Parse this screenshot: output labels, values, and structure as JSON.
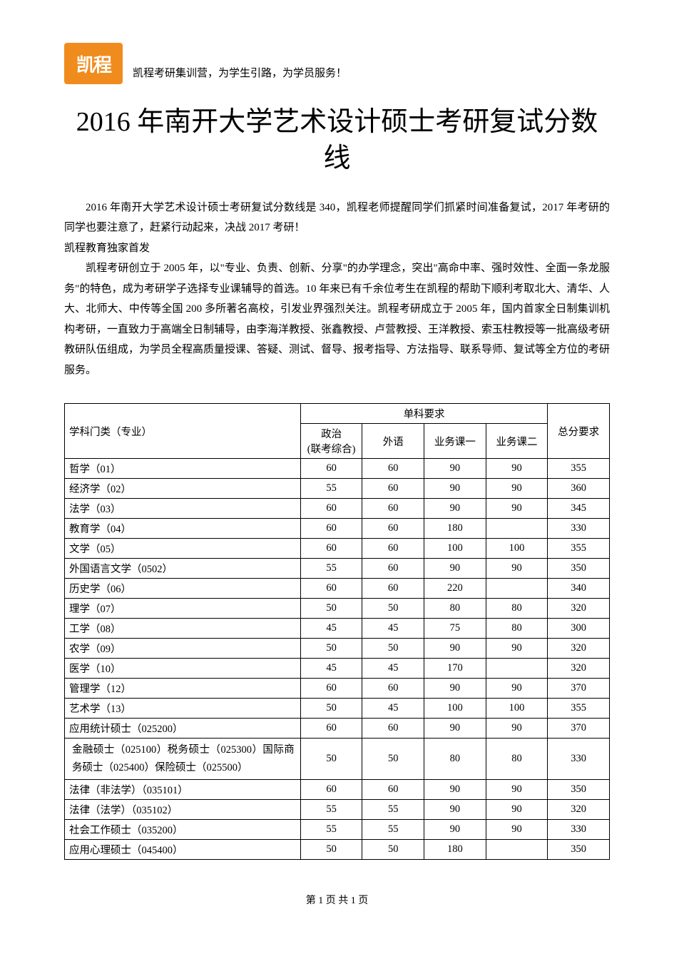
{
  "header": {
    "logo_text": "凯程",
    "tagline": "凯程考研集训营，为学生引路，为学员服务！"
  },
  "title": "2016 年南开大学艺术设计硕士考研复试分数线",
  "paragraphs": {
    "p1": "2016 年南开大学艺术设计硕士考研复试分数线是 340，凯程老师提醒同学们抓紧时间准备复试，2017 年考研的同学也要注意了，赶紧行动起来，决战 2017 考研！",
    "subhead": "凯程教育独家首发",
    "p2": "凯程考研创立于 2005 年，以\"专业、负责、创新、分享\"的办学理念，突出\"高命中率、强时效性、全面一条龙服务\"的特色，成为考研学子选择专业课辅导的首选。10 年来已有千余位考生在凯程的帮助下顺利考取北大、清华、人大、北师大、中传等全国 200 多所著名高校，引发业界强烈关注。凯程考研成立于 2005 年，国内首家全日制集训机构考研，一直致力于高端全日制辅导，由李海洋教授、张鑫教授、卢营教授、王洋教授、索玉柱教授等一批高级考研教研队伍组成，为学员全程高质量授课、答疑、测试、督导、报考指导、方法指导、联系导师、复试等全方位的考研服务。"
  },
  "table": {
    "header": {
      "subject": "学科门类（专业）",
      "group": "单科要求",
      "col1_a": "政治",
      "col1_b": "(联考综合)",
      "col2": "外语",
      "col3": "业务课一",
      "col4": "业务课二",
      "total": "总分要求"
    },
    "rows": [
      {
        "subject": "哲学（01）",
        "c1": "60",
        "c2": "60",
        "c3": "90",
        "c4": "90",
        "total": "355"
      },
      {
        "subject": "经济学（02）",
        "c1": "55",
        "c2": "60",
        "c3": "90",
        "c4": "90",
        "total": "360"
      },
      {
        "subject": "法学（03）",
        "c1": "60",
        "c2": "60",
        "c3": "90",
        "c4": "90",
        "total": "345"
      },
      {
        "subject": "教育学（04）",
        "c1": "60",
        "c2": "60",
        "c3": "180",
        "c4": "",
        "total": "330"
      },
      {
        "subject": "文学（05）",
        "c1": "60",
        "c2": "60",
        "c3": "100",
        "c4": "100",
        "total": "355"
      },
      {
        "subject": "外国语言文学（0502）",
        "c1": "55",
        "c2": "60",
        "c3": "90",
        "c4": "90",
        "total": "350"
      },
      {
        "subject": "历史学（06）",
        "c1": "60",
        "c2": "60",
        "c3": "220",
        "c4": "",
        "total": "340"
      },
      {
        "subject": "理学（07）",
        "c1": "50",
        "c2": "50",
        "c3": "80",
        "c4": "80",
        "total": "320"
      },
      {
        "subject": "工学（08）",
        "c1": "45",
        "c2": "45",
        "c3": "75",
        "c4": "80",
        "total": "300"
      },
      {
        "subject": "农学（09）",
        "c1": "50",
        "c2": "50",
        "c3": "90",
        "c4": "90",
        "total": "320"
      },
      {
        "subject": "医学（10）",
        "c1": "45",
        "c2": "45",
        "c3": "170",
        "c4": "",
        "total": "320"
      },
      {
        "subject": "管理学（12）",
        "c1": "60",
        "c2": "60",
        "c3": "90",
        "c4": "90",
        "total": "370"
      },
      {
        "subject": "艺术学（13）",
        "c1": "50",
        "c2": "45",
        "c3": "100",
        "c4": "100",
        "total": "355"
      },
      {
        "subject": "应用统计硕士（025200）",
        "c1": "60",
        "c2": "60",
        "c3": "90",
        "c4": "90",
        "total": "370"
      },
      {
        "subject": "金融硕士（025100）税务硕士（025300）国际商务硕士（025400）保险硕士（025500）",
        "c1": "50",
        "c2": "50",
        "c3": "80",
        "c4": "80",
        "total": "330",
        "multiline": true
      },
      {
        "subject": "法律（非法学）（035101）",
        "c1": "60",
        "c2": "60",
        "c3": "90",
        "c4": "90",
        "total": "350"
      },
      {
        "subject": "法律（法学）（035102）",
        "c1": "55",
        "c2": "55",
        "c3": "90",
        "c4": "90",
        "total": "320"
      },
      {
        "subject": "社会工作硕士（035200）",
        "c1": "55",
        "c2": "55",
        "c3": "90",
        "c4": "90",
        "total": "330"
      },
      {
        "subject": "应用心理硕士（045400）",
        "c1": "50",
        "c2": "50",
        "c3": "180",
        "c4": "",
        "total": "350"
      }
    ]
  },
  "footer": "第 1 页 共 1 页",
  "style": {
    "brand_color": "#f08c1e",
    "text_color": "#000000",
    "background": "#ffffff",
    "border_color": "#000000",
    "title_fontsize": 38,
    "body_fontsize": 15,
    "table_fontsize": 14.5
  }
}
